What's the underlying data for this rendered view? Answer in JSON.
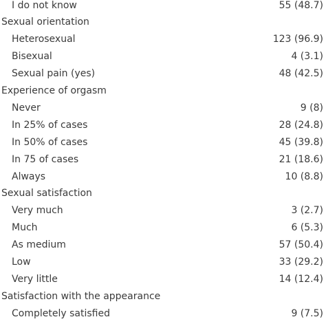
{
  "table": {
    "rows": [
      {
        "label": "I do not know",
        "value": "55 (48.7)"
      },
      {
        "label": "Sexual orientation"
      },
      {
        "label": "Heterosexual",
        "value": "123 (96.9)"
      },
      {
        "label": "Bisexual",
        "value": "4 (3.1)"
      },
      {
        "label": "Sexual pain (yes)",
        "value": "48 (42.5)"
      },
      {
        "label": "Experience of orgasm"
      },
      {
        "label": "Never",
        "value": "9 (8)"
      },
      {
        "label": "In 25% of cases",
        "value": "28 (24.8)"
      },
      {
        "label": "In 50% of cases",
        "value": "45 (39.8)"
      },
      {
        "label": "In 75 of cases",
        "value": "21 (18.6)"
      },
      {
        "label": "Always",
        "value": "10 (8.8)"
      },
      {
        "label": "Sexual satisfaction"
      },
      {
        "label": "Very much",
        "value": "3 (2.7)"
      },
      {
        "label": "Much",
        "value": "6 (5.3)"
      },
      {
        "label": "As medium",
        "value": "57 (50.4)"
      },
      {
        "label": "Low",
        "value": "33 (29.2)"
      },
      {
        "label": "Very little",
        "value": "14 (12.4)"
      },
      {
        "label": "Satisfaction with the appearance"
      },
      {
        "label": "Completely satisfied",
        "value": "9 (7.5)"
      }
    ]
  }
}
